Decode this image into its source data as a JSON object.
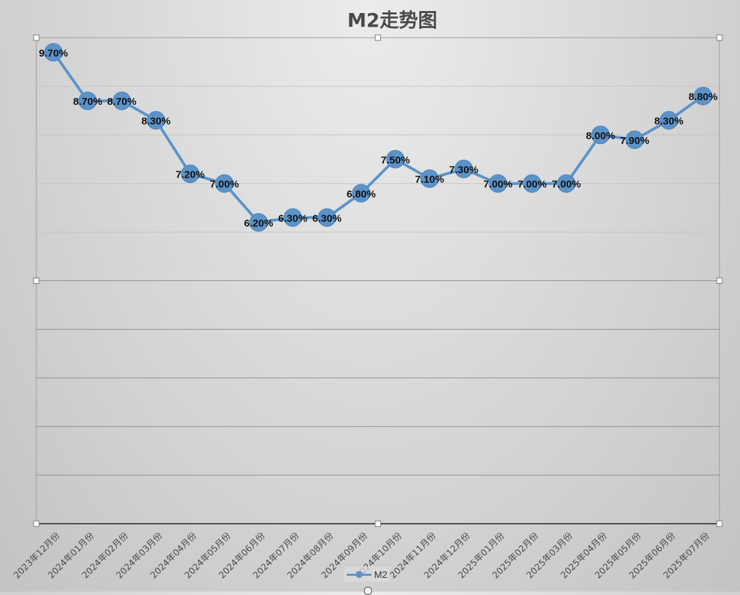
{
  "chart_data": {
    "type": "line",
    "title": "M2走势图",
    "categories": [
      "2023年12月份",
      "2024年01月份",
      "2024年02月份",
      "2024年03月份",
      "2024年04月份",
      "2024年05月份",
      "2024年06月份",
      "2024年07月份",
      "2024年08月份",
      "2024年09月份",
      "2024年10月份",
      "2024年11月份",
      "2024年12月份",
      "2025年01月份",
      "2025年02月份",
      "2025年03月份",
      "2025年04月份",
      "2025年05月份",
      "2025年06月份",
      "2025年07月份"
    ],
    "series": [
      {
        "name": "M2",
        "values": [
          9.7,
          8.7,
          8.7,
          8.3,
          7.2,
          7.0,
          6.2,
          6.3,
          6.3,
          6.8,
          7.5,
          7.1,
          7.3,
          7.0,
          7.0,
          7.0,
          8.0,
          7.9,
          8.3,
          8.8
        ],
        "color": "#5b93c9"
      }
    ],
    "data_labels": [
      "9.70%",
      "8.70%",
      "8.70%",
      "8.30%",
      "7.20%",
      "7.00%",
      "6.20%",
      "6.30%",
      "6.30%",
      "6.80%",
      "7.50%",
      "7.10%",
      "7.30%",
      "7.00%",
      "7.00%",
      "7.00%",
      "8.00%",
      "7.90%",
      "8.30%",
      "8.80%"
    ],
    "ylim": [
      0,
      10
    ],
    "xlabel": "",
    "ylabel": "",
    "grid": true,
    "legend": "bottom"
  }
}
